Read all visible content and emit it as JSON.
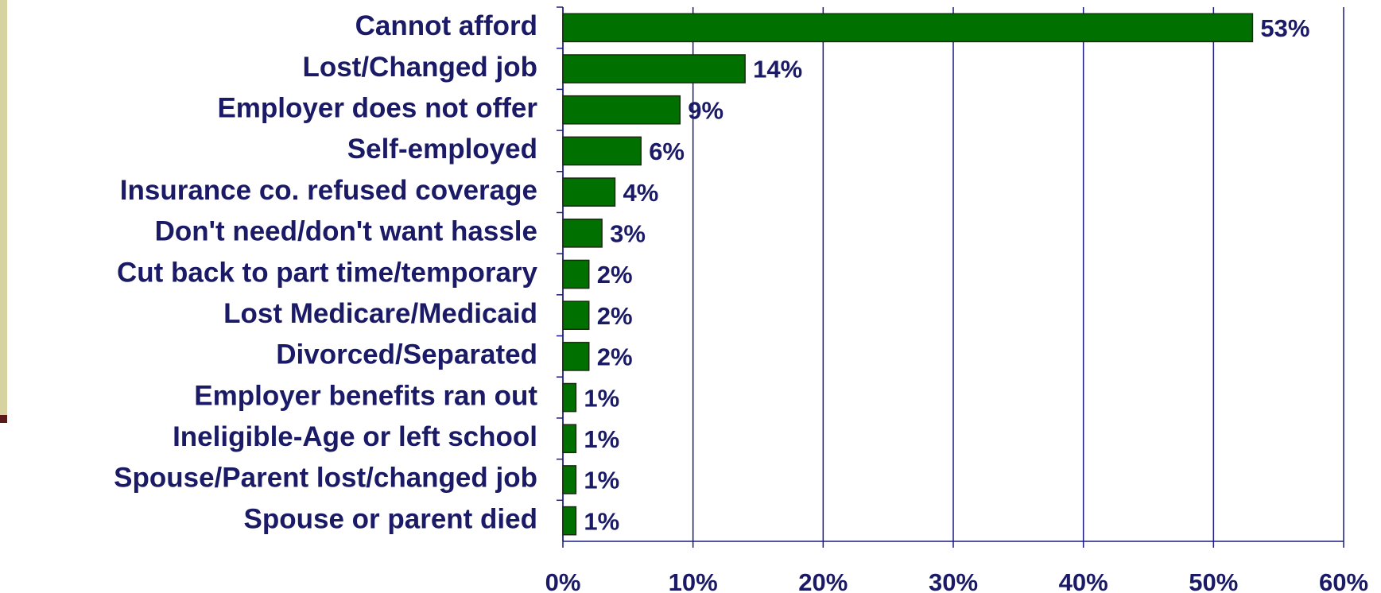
{
  "chart_data": {
    "type": "bar",
    "orientation": "horizontal",
    "categories": [
      "Cannot afford",
      "Lost/Changed job",
      "Employer does not offer",
      "Self-employed",
      "Insurance co. refused coverage",
      "Don't need/don't want hassle",
      "Cut back to part time/temporary",
      "Lost Medicare/Medicaid",
      "Divorced/Separated",
      "Employer benefits ran out",
      "Ineligible-Age or left school",
      "Spouse/Parent lost/changed job",
      "Spouse or parent died"
    ],
    "values": [
      53,
      14,
      9,
      6,
      4,
      3,
      2,
      2,
      2,
      1,
      1,
      1,
      1
    ],
    "value_labels": [
      "53%",
      "14%",
      "9%",
      "6%",
      "4%",
      "3%",
      "2%",
      "2%",
      "2%",
      "1%",
      "1%",
      "1%",
      "1%"
    ],
    "color": "#007000",
    "xlim": [
      0,
      60
    ],
    "xticks": [
      {
        "value": 0,
        "label": "0%"
      },
      {
        "value": 10,
        "label": "10%"
      },
      {
        "value": 20,
        "label": "20%"
      },
      {
        "value": 30,
        "label": "30%"
      },
      {
        "value": 40,
        "label": "40%"
      },
      {
        "value": 50,
        "label": "50%"
      },
      {
        "value": 60,
        "label": "60%"
      }
    ],
    "grid": true
  }
}
